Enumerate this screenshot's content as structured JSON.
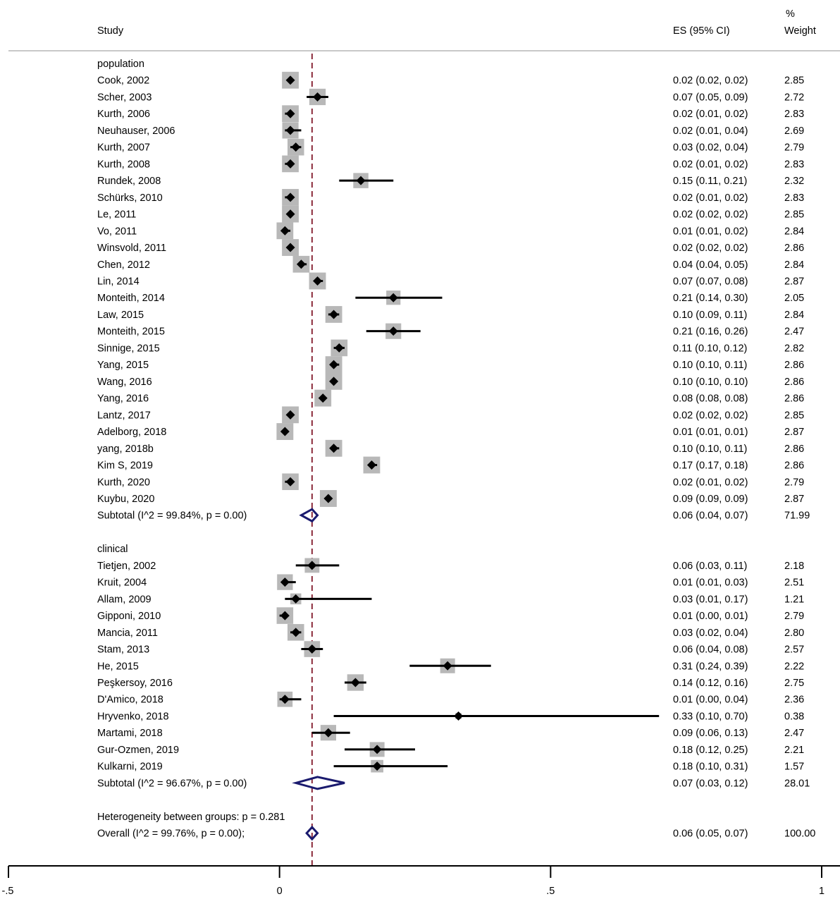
{
  "chart_data": {
    "type": "forest",
    "header": {
      "study": "Study",
      "es": "ES (95% CI)",
      "weight_top": "%",
      "weight": "Weight"
    },
    "xaxis": {
      "min": -0.5,
      "max": 1,
      "ticks": [
        -0.5,
        0,
        0.5,
        1
      ],
      "tick_labels": [
        "-.5",
        "0",
        ".5",
        "1"
      ]
    },
    "overall_line": 0.06,
    "rows": [
      {
        "kind": "group",
        "label": "population"
      },
      {
        "kind": "study",
        "label": "Cook, 2002",
        "es": 0.02,
        "lo": 0.02,
        "hi": 0.02,
        "es_text": "0.02 (0.02, 0.02)",
        "weight": 2.85,
        "weight_text": "2.85"
      },
      {
        "kind": "study",
        "label": "Scher, 2003",
        "es": 0.07,
        "lo": 0.05,
        "hi": 0.09,
        "es_text": "0.07 (0.05, 0.09)",
        "weight": 2.72,
        "weight_text": "2.72"
      },
      {
        "kind": "study",
        "label": "Kurth, 2006",
        "es": 0.02,
        "lo": 0.01,
        "hi": 0.02,
        "es_text": "0.02 (0.01, 0.02)",
        "weight": 2.83,
        "weight_text": "2.83"
      },
      {
        "kind": "study",
        "label": "Neuhauser, 2006",
        "es": 0.02,
        "lo": 0.01,
        "hi": 0.04,
        "es_text": "0.02 (0.01, 0.04)",
        "weight": 2.69,
        "weight_text": "2.69"
      },
      {
        "kind": "study",
        "label": "Kurth, 2007",
        "es": 0.03,
        "lo": 0.02,
        "hi": 0.04,
        "es_text": "0.03 (0.02, 0.04)",
        "weight": 2.79,
        "weight_text": "2.79"
      },
      {
        "kind": "study",
        "label": "Kurth, 2008",
        "es": 0.02,
        "lo": 0.01,
        "hi": 0.02,
        "es_text": "0.02 (0.01, 0.02)",
        "weight": 2.83,
        "weight_text": "2.83"
      },
      {
        "kind": "study",
        "label": "Rundek, 2008",
        "es": 0.15,
        "lo": 0.11,
        "hi": 0.21,
        "es_text": "0.15 (0.11, 0.21)",
        "weight": 2.32,
        "weight_text": "2.32"
      },
      {
        "kind": "study",
        "label": "Schürks, 2010",
        "es": 0.02,
        "lo": 0.01,
        "hi": 0.02,
        "es_text": "0.02 (0.01, 0.02)",
        "weight": 2.83,
        "weight_text": "2.83"
      },
      {
        "kind": "study",
        "label": "Le, 2011",
        "es": 0.02,
        "lo": 0.02,
        "hi": 0.02,
        "es_text": "0.02 (0.02, 0.02)",
        "weight": 2.85,
        "weight_text": "2.85"
      },
      {
        "kind": "study",
        "label": "Vo, 2011",
        "es": 0.01,
        "lo": 0.01,
        "hi": 0.02,
        "es_text": "0.01 (0.01, 0.02)",
        "weight": 2.84,
        "weight_text": "2.84"
      },
      {
        "kind": "study",
        "label": "Winsvold, 2011",
        "es": 0.02,
        "lo": 0.02,
        "hi": 0.02,
        "es_text": "0.02 (0.02, 0.02)",
        "weight": 2.86,
        "weight_text": "2.86"
      },
      {
        "kind": "study",
        "label": "Chen, 2012",
        "es": 0.04,
        "lo": 0.04,
        "hi": 0.05,
        "es_text": "0.04 (0.04, 0.05)",
        "weight": 2.84,
        "weight_text": "2.84"
      },
      {
        "kind": "study",
        "label": "Lin, 2014",
        "es": 0.07,
        "lo": 0.07,
        "hi": 0.08,
        "es_text": "0.07 (0.07, 0.08)",
        "weight": 2.87,
        "weight_text": "2.87"
      },
      {
        "kind": "study",
        "label": "Monteith, 2014",
        "es": 0.21,
        "lo": 0.14,
        "hi": 0.3,
        "es_text": "0.21 (0.14, 0.30)",
        "weight": 2.05,
        "weight_text": "2.05"
      },
      {
        "kind": "study",
        "label": "Law, 2015",
        "es": 0.1,
        "lo": 0.09,
        "hi": 0.11,
        "es_text": "0.10 (0.09, 0.11)",
        "weight": 2.84,
        "weight_text": "2.84"
      },
      {
        "kind": "study",
        "label": "Monteith, 2015",
        "es": 0.21,
        "lo": 0.16,
        "hi": 0.26,
        "es_text": "0.21 (0.16, 0.26)",
        "weight": 2.47,
        "weight_text": "2.47"
      },
      {
        "kind": "study",
        "label": "Sinnige, 2015",
        "es": 0.11,
        "lo": 0.1,
        "hi": 0.12,
        "es_text": "0.11 (0.10, 0.12)",
        "weight": 2.82,
        "weight_text": "2.82"
      },
      {
        "kind": "study",
        "label": "Yang, 2015",
        "es": 0.1,
        "lo": 0.1,
        "hi": 0.11,
        "es_text": "0.10 (0.10, 0.11)",
        "weight": 2.86,
        "weight_text": "2.86"
      },
      {
        "kind": "study",
        "label": "Wang, 2016",
        "es": 0.1,
        "lo": 0.1,
        "hi": 0.1,
        "es_text": "0.10 (0.10, 0.10)",
        "weight": 2.86,
        "weight_text": "2.86"
      },
      {
        "kind": "study",
        "label": "Yang, 2016",
        "es": 0.08,
        "lo": 0.08,
        "hi": 0.08,
        "es_text": "0.08 (0.08, 0.08)",
        "weight": 2.86,
        "weight_text": "2.86"
      },
      {
        "kind": "study",
        "label": "Lantz, 2017",
        "es": 0.02,
        "lo": 0.02,
        "hi": 0.02,
        "es_text": "0.02 (0.02, 0.02)",
        "weight": 2.85,
        "weight_text": "2.85"
      },
      {
        "kind": "study",
        "label": "Adelborg, 2018",
        "es": 0.01,
        "lo": 0.01,
        "hi": 0.01,
        "es_text": "0.01 (0.01, 0.01)",
        "weight": 2.87,
        "weight_text": "2.87"
      },
      {
        "kind": "study",
        "label": "yang, 2018b",
        "es": 0.1,
        "lo": 0.1,
        "hi": 0.11,
        "es_text": "0.10 (0.10, 0.11)",
        "weight": 2.86,
        "weight_text": "2.86"
      },
      {
        "kind": "study",
        "label": "Kim S, 2019",
        "es": 0.17,
        "lo": 0.17,
        "hi": 0.18,
        "es_text": "0.17 (0.17, 0.18)",
        "weight": 2.86,
        "weight_text": "2.86"
      },
      {
        "kind": "study",
        "label": "Kurth, 2020",
        "es": 0.02,
        "lo": 0.01,
        "hi": 0.02,
        "es_text": "0.02 (0.01, 0.02)",
        "weight": 2.79,
        "weight_text": "2.79"
      },
      {
        "kind": "study",
        "label": "Kuybu, 2020",
        "es": 0.09,
        "lo": 0.09,
        "hi": 0.09,
        "es_text": "0.09 (0.09, 0.09)",
        "weight": 2.87,
        "weight_text": "2.87"
      },
      {
        "kind": "subtotal",
        "label": "Subtotal  (I^2 = 99.84%, p = 0.00)",
        "es": 0.06,
        "lo": 0.04,
        "hi": 0.07,
        "es_text": "0.06 (0.04, 0.07)",
        "weight": 71.99,
        "weight_text": "71.99"
      },
      {
        "kind": "blank"
      },
      {
        "kind": "group",
        "label": "clinical"
      },
      {
        "kind": "study",
        "label": "Tietjen, 2002",
        "es": 0.06,
        "lo": 0.03,
        "hi": 0.11,
        "es_text": "0.06 (0.03, 0.11)",
        "weight": 2.18,
        "weight_text": "2.18"
      },
      {
        "kind": "study",
        "label": "Kruit, 2004",
        "es": 0.01,
        "lo": 0.01,
        "hi": 0.03,
        "es_text": "0.01 (0.01, 0.03)",
        "weight": 2.51,
        "weight_text": "2.51"
      },
      {
        "kind": "study",
        "label": "Allam, 2009",
        "es": 0.03,
        "lo": 0.01,
        "hi": 0.17,
        "es_text": "0.03 (0.01, 0.17)",
        "weight": 1.21,
        "weight_text": "1.21"
      },
      {
        "kind": "study",
        "label": "Gipponi, 2010",
        "es": 0.01,
        "lo": 0.0,
        "hi": 0.01,
        "es_text": "0.01 (0.00, 0.01)",
        "weight": 2.79,
        "weight_text": "2.79"
      },
      {
        "kind": "study",
        "label": "Mancia, 2011",
        "es": 0.03,
        "lo": 0.02,
        "hi": 0.04,
        "es_text": "0.03 (0.02, 0.04)",
        "weight": 2.8,
        "weight_text": "2.80"
      },
      {
        "kind": "study",
        "label": "Stam, 2013",
        "es": 0.06,
        "lo": 0.04,
        "hi": 0.08,
        "es_text": "0.06 (0.04, 0.08)",
        "weight": 2.57,
        "weight_text": "2.57"
      },
      {
        "kind": "study",
        "label": "He, 2015",
        "es": 0.31,
        "lo": 0.24,
        "hi": 0.39,
        "es_text": "0.31 (0.24, 0.39)",
        "weight": 2.22,
        "weight_text": "2.22"
      },
      {
        "kind": "study",
        "label": "Peşkersoy, 2016",
        "es": 0.14,
        "lo": 0.12,
        "hi": 0.16,
        "es_text": "0.14 (0.12, 0.16)",
        "weight": 2.75,
        "weight_text": "2.75"
      },
      {
        "kind": "study",
        "label": "D'Amico, 2018",
        "es": 0.01,
        "lo": 0.0,
        "hi": 0.04,
        "es_text": "0.01 (0.00, 0.04)",
        "weight": 2.36,
        "weight_text": "2.36"
      },
      {
        "kind": "study",
        "label": "Hryvenko, 2018",
        "es": 0.33,
        "lo": 0.1,
        "hi": 0.7,
        "es_text": "0.33 (0.10, 0.70)",
        "weight": 0.38,
        "weight_text": "0.38"
      },
      {
        "kind": "study",
        "label": "Martami, 2018",
        "es": 0.09,
        "lo": 0.06,
        "hi": 0.13,
        "es_text": "0.09 (0.06, 0.13)",
        "weight": 2.47,
        "weight_text": "2.47"
      },
      {
        "kind": "study",
        "label": "Gur-Ozmen, 2019",
        "es": 0.18,
        "lo": 0.12,
        "hi": 0.25,
        "es_text": "0.18 (0.12, 0.25)",
        "weight": 2.21,
        "weight_text": "2.21"
      },
      {
        "kind": "study",
        "label": "Kulkarni, 2019",
        "es": 0.18,
        "lo": 0.1,
        "hi": 0.31,
        "es_text": "0.18 (0.10, 0.31)",
        "weight": 1.57,
        "weight_text": "1.57"
      },
      {
        "kind": "subtotal",
        "label": "Subtotal  (I^2 = 96.67%, p = 0.00)",
        "es": 0.07,
        "lo": 0.03,
        "hi": 0.12,
        "es_text": "0.07 (0.03, 0.12)",
        "weight": 28.01,
        "weight_text": "28.01"
      },
      {
        "kind": "blank"
      },
      {
        "kind": "note",
        "label": "Heterogeneity between groups: p = 0.281"
      },
      {
        "kind": "overall",
        "label": "Overall  (I^2 = 99.76%, p = 0.00);",
        "es": 0.06,
        "lo": 0.05,
        "hi": 0.07,
        "es_text": "0.06 (0.05, 0.07)",
        "weight": 100.0,
        "weight_text": "100.00"
      }
    ],
    "colors": {
      "weight_box": "#b8b8b8",
      "point": "#000000",
      "ci_line": "#000000",
      "pooled_diamond": "#1a1a6e",
      "overall_line": "#8b2a3a",
      "header_rule": "#c8c8c8",
      "axis": "#000000"
    }
  }
}
